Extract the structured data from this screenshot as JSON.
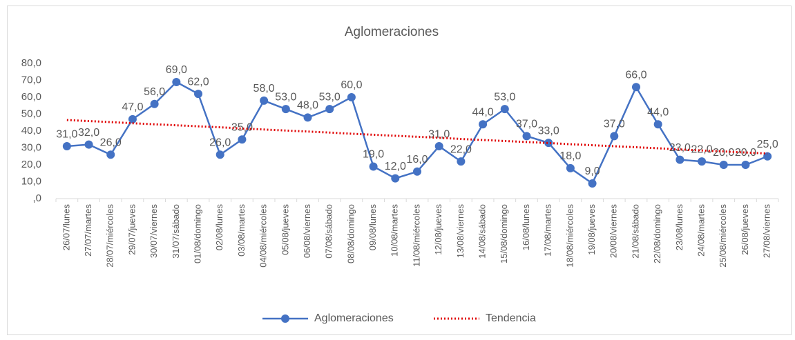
{
  "chart_data": {
    "type": "line",
    "title": "Aglomeraciones",
    "categories": [
      "26/07/lunes",
      "27/07/martes",
      "28/07/miércoles",
      "29/07/jueves",
      "30/07/viernes",
      "31/07/sábado",
      "01/08/domingo",
      "02/08/lunes",
      "03/08/martes",
      "04/08/miércoles",
      "05/08/jueves",
      "06/08/viernes",
      "07/08/sábado",
      "08/08/domingo",
      "09/08/lunes",
      "10/08/martes",
      "11/08/miércoles",
      "12/08/jueves",
      "13/08/viernes",
      "14/08/sábado",
      "15/08/domingo",
      "16/08/lunes",
      "17/08/martes",
      "18/08/miércoles",
      "19/08/jueves",
      "20/08/viernes",
      "21/08/sábado",
      "22/08/domingo",
      "23/08/lunes",
      "24/08/martes",
      "25/08/miércoles",
      "26/08/jueves",
      "27/08/viernes"
    ],
    "series": [
      {
        "name": "Aglomeraciones",
        "color": "#4472c4",
        "values": [
          31,
          32,
          26,
          47,
          56,
          69,
          62,
          26,
          35,
          58,
          53,
          48,
          53,
          60,
          19,
          12,
          16,
          31,
          22,
          44,
          53,
          37,
          33,
          18,
          9,
          37,
          66,
          44,
          23,
          22,
          20,
          20,
          25
        ],
        "value_labels": [
          "31,0",
          "32,0",
          "26,0",
          "47,0",
          "56,0",
          "69,0",
          "62,0",
          "26,0",
          "35,0",
          "58,0",
          "53,0",
          "48,0",
          "53,0",
          "60,0",
          "19,0",
          "12,0",
          "16,0",
          "31,0",
          "22,0",
          "44,0",
          "53,0",
          "37,0",
          "33,0",
          "18,0",
          "9,0",
          "37,0",
          "66,0",
          "44,0",
          "23,0",
          "22,0",
          "20,0",
          "20,0",
          "25,0"
        ]
      },
      {
        "name": "Tendencia",
        "color": "#e00000",
        "values": [
          46.5,
          45.9,
          45.3,
          44.6,
          44.0,
          43.4,
          42.8,
          42.2,
          41.5,
          40.9,
          40.3,
          39.7,
          39.1,
          38.4,
          37.8,
          37.2,
          36.6,
          36.0,
          35.3,
          34.7,
          34.1,
          33.5,
          32.9,
          32.2,
          31.6,
          31.0,
          30.4,
          29.8,
          29.1,
          28.5,
          27.9,
          27.3,
          26.7
        ]
      }
    ],
    "ylim": [
      0,
      80
    ],
    "yticks": [
      {
        "value": 0,
        "label": ",0"
      },
      {
        "value": 10,
        "label": "10,0"
      },
      {
        "value": 20,
        "label": "20,0"
      },
      {
        "value": 30,
        "label": "30,0"
      },
      {
        "value": 40,
        "label": "40,0"
      },
      {
        "value": 50,
        "label": "50,0"
      },
      {
        "value": 60,
        "label": "60,0"
      },
      {
        "value": 70,
        "label": "70,0"
      },
      {
        "value": 80,
        "label": "80,0"
      }
    ],
    "grid": false,
    "legend": "bottom"
  }
}
